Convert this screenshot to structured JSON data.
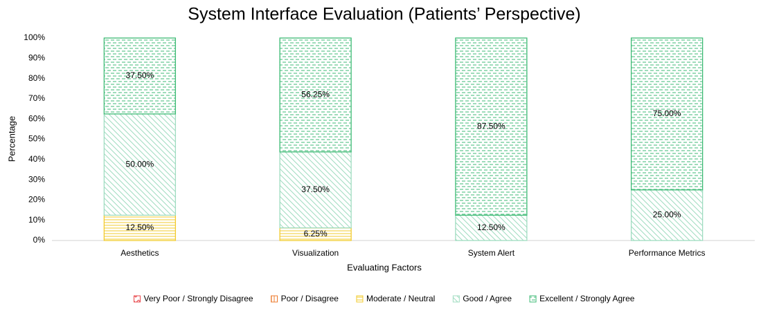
{
  "chart_data": {
    "type": "stacked_bar",
    "title": "System Interface Evaluation (Patients’ Perspective)",
    "x_label": "Evaluating Factors",
    "y_label": "Percentage",
    "categories": [
      "Aesthetics",
      "Visualization",
      "System Alert",
      "Performance Metrics"
    ],
    "series": [
      {
        "name": "Very Poor / Strongly Disagree",
        "color": "#e8474b",
        "values": [
          0,
          0,
          0,
          0
        ],
        "value_labels": [
          null,
          null,
          null,
          null
        ]
      },
      {
        "name": "Poor / Disagree",
        "color": "#ed7d31",
        "values": [
          0,
          0,
          0,
          0
        ],
        "value_labels": [
          null,
          null,
          null,
          null
        ]
      },
      {
        "name": "Moderate / Neutral",
        "color": "#f2cb2e",
        "values": [
          12.5,
          6.25,
          0,
          0
        ],
        "value_labels": [
          "12.50%",
          "6.25%",
          null,
          null
        ]
      },
      {
        "name": "Good / Agree",
        "color": "#9fdcc0",
        "values": [
          50,
          37.5,
          12.5,
          25
        ],
        "value_labels": [
          "50.00%",
          "37.50%",
          "12.50%",
          "25.00%"
        ]
      },
      {
        "name": "Excellent / Strongly Agree",
        "color": "#3cba74",
        "values": [
          37.5,
          56.25,
          87.5,
          75
        ],
        "value_labels": [
          "37.50%",
          "56.25%",
          "87.50%",
          "75.00%"
        ]
      }
    ],
    "ylim": [
      0,
      100
    ],
    "yticks": [
      {
        "value": 0,
        "label": "0%"
      },
      {
        "value": 10,
        "label": "10%"
      },
      {
        "value": 20,
        "label": "20%"
      },
      {
        "value": 30,
        "label": "30%"
      },
      {
        "value": 40,
        "label": "40%"
      },
      {
        "value": 50,
        "label": "50%"
      },
      {
        "value": 60,
        "label": "60%"
      },
      {
        "value": 70,
        "label": "70%"
      },
      {
        "value": 80,
        "label": "80%"
      },
      {
        "value": 90,
        "label": "90%"
      },
      {
        "value": 100,
        "label": "100%"
      }
    ],
    "grid": false,
    "legend": "bottom"
  }
}
